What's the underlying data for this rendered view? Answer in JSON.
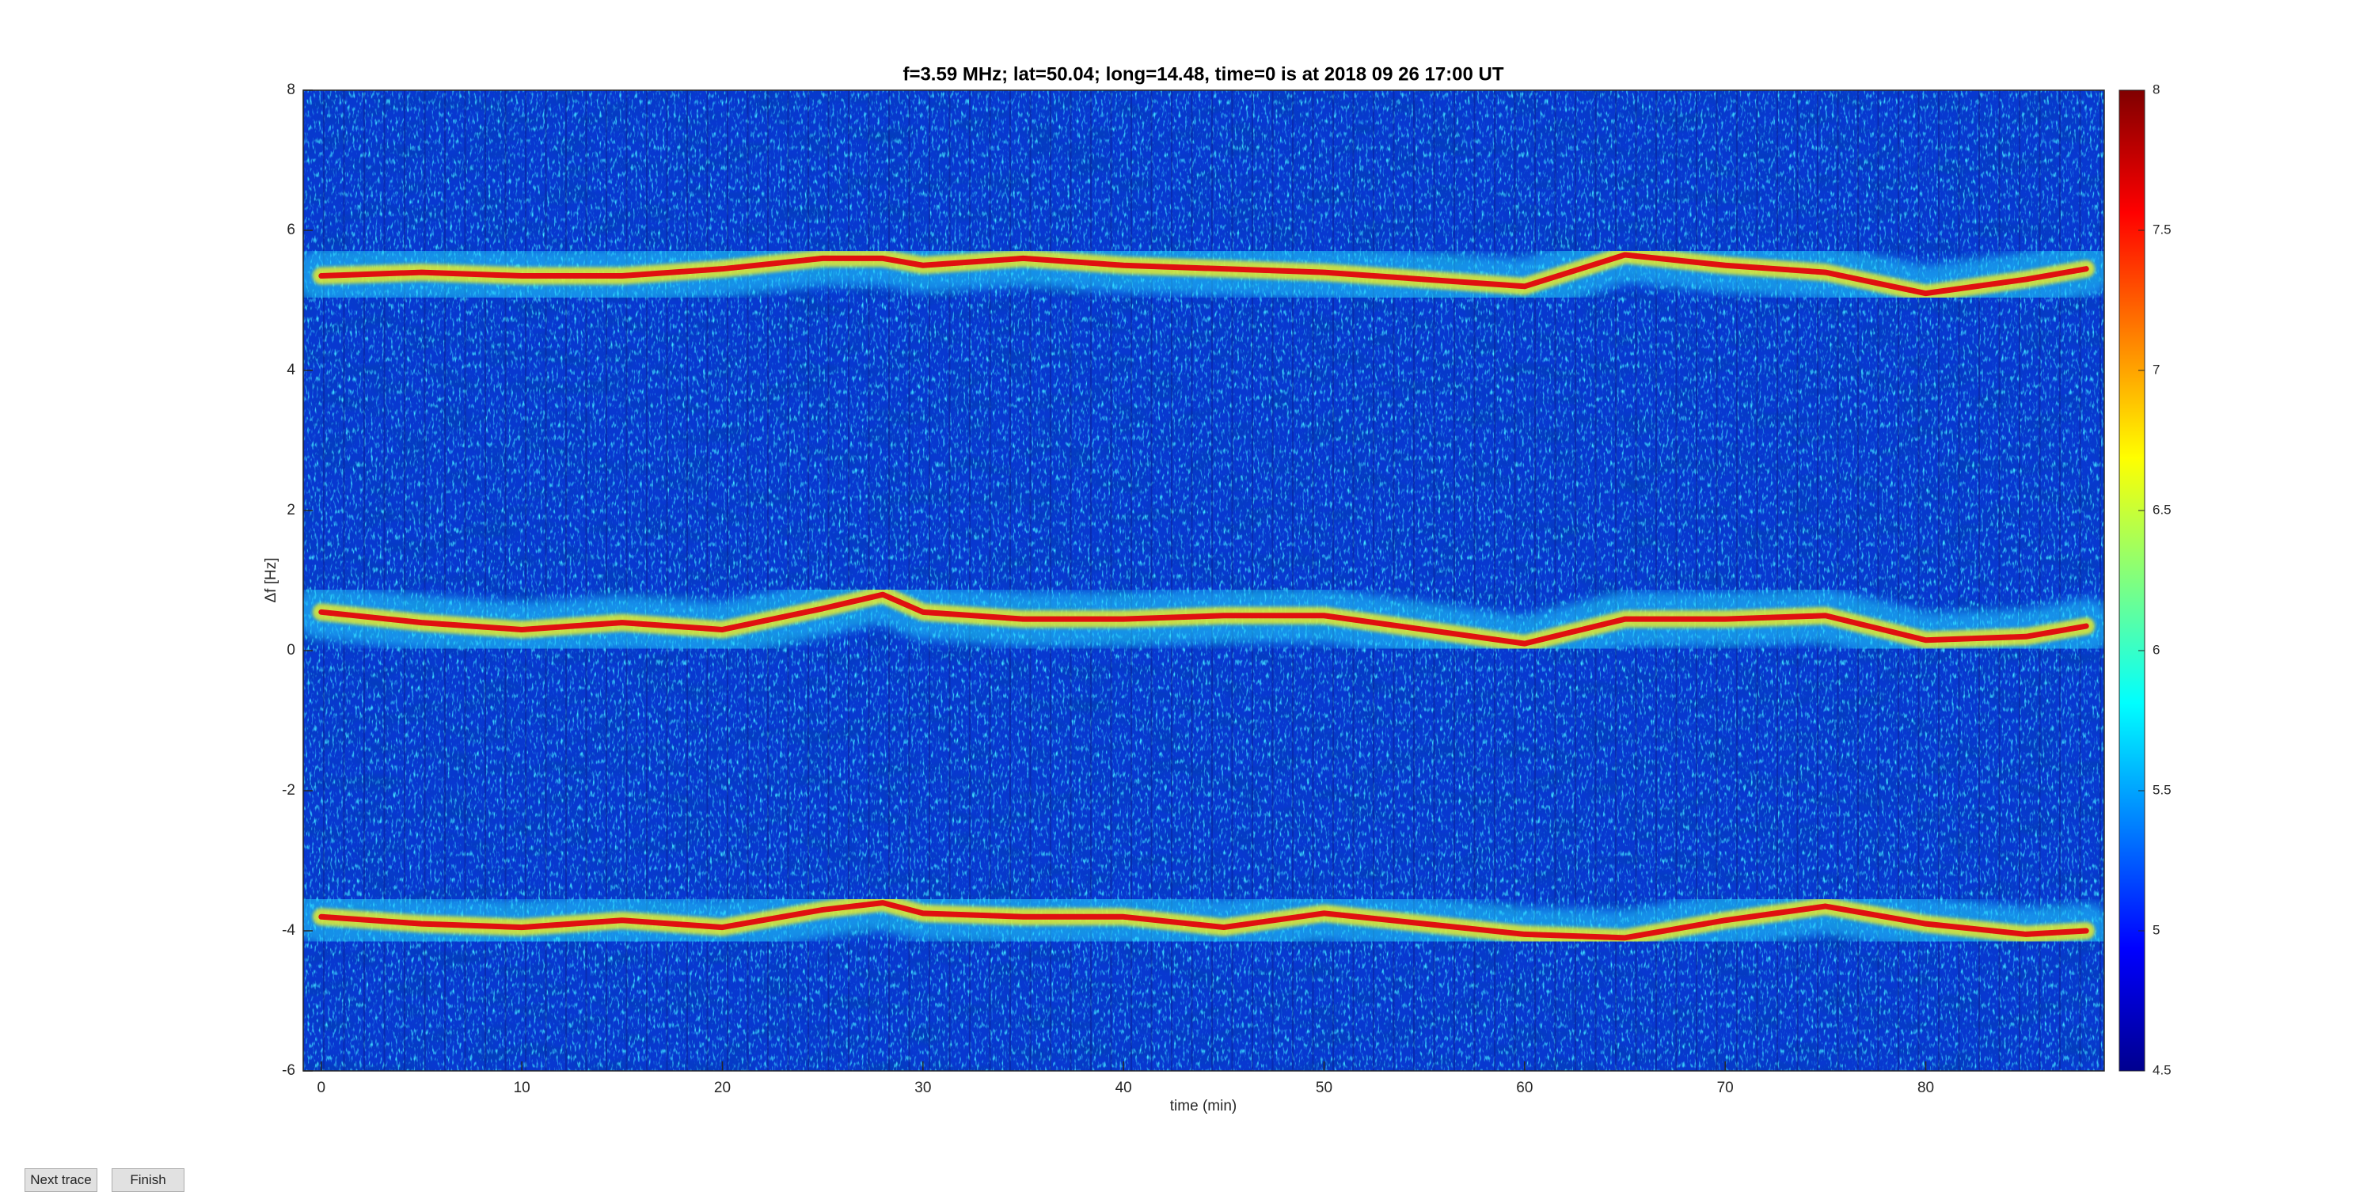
{
  "chart_data": {
    "type": "spectrogram",
    "title": "f=3.59 MHz;  lat=50.04; long=14.48, time=0 is at 2018 09 26 17:00 UT",
    "xlabel": "time (min)",
    "ylabel": "Δf [Hz]",
    "xlim": [
      -0.9,
      88.9
    ],
    "xticks": [
      0,
      10,
      20,
      30,
      40,
      50,
      60,
      70,
      80
    ],
    "ylim": [
      -6,
      8
    ],
    "yticks": [
      -6,
      -4,
      -2,
      0,
      2,
      4,
      6,
      8
    ],
    "colormap": "jet",
    "clim": [
      4.5,
      8
    ],
    "cticks": [
      4.5,
      5,
      5.5,
      6,
      6.5,
      7,
      7.5,
      8
    ],
    "x": [
      0,
      5,
      10,
      15,
      20,
      25,
      28,
      30,
      35,
      40,
      45,
      50,
      55,
      60,
      65,
      70,
      75,
      80,
      85,
      88
    ],
    "series": [
      {
        "values": [
          5.35,
          5.4,
          5.35,
          5.35,
          5.45,
          5.6,
          5.6,
          5.5,
          5.6,
          5.5,
          5.45,
          5.4,
          5.3,
          5.2,
          5.65,
          5.5,
          5.4,
          5.1,
          5.3,
          5.45
        ]
      },
      {
        "values": [
          0.55,
          0.4,
          0.3,
          0.4,
          0.3,
          0.6,
          0.8,
          0.55,
          0.45,
          0.45,
          0.5,
          0.5,
          0.3,
          0.1,
          0.45,
          0.45,
          0.5,
          0.15,
          0.2,
          0.35
        ]
      },
      {
        "values": [
          -3.8,
          -3.9,
          -3.95,
          -3.85,
          -3.95,
          -3.7,
          -3.6,
          -3.75,
          -3.8,
          -3.8,
          -3.95,
          -3.75,
          -3.9,
          -4.05,
          -4.1,
          -3.85,
          -3.65,
          -3.9,
          -4.05,
          -4.0
        ]
      }
    ]
  },
  "buttons": [
    "Next trace",
    "Finish"
  ]
}
